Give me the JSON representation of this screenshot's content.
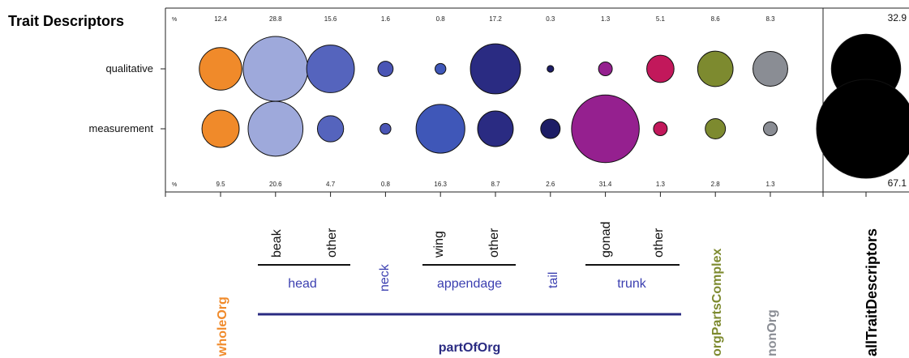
{
  "chart_data": {
    "type": "bubble",
    "title": "Trait Descriptors",
    "rows": [
      "qualitative",
      "measurement"
    ],
    "percent_marker": "%",
    "columns": [
      {
        "key": "wholeOrg",
        "color": "#f08a2a",
        "qualitative": 12.4,
        "measurement": 9.5
      },
      {
        "key": "head-beak",
        "color": "#9ea9db",
        "qualitative": 28.8,
        "measurement": 20.6
      },
      {
        "key": "head-other",
        "color": "#5564bd",
        "qualitative": 15.6,
        "measurement": 4.7
      },
      {
        "key": "neck",
        "color": "#4a55b5",
        "qualitative": 1.6,
        "measurement": 0.8
      },
      {
        "key": "appendage-wing",
        "color": "#3f57b8",
        "qualitative": 0.8,
        "measurement": 16.3
      },
      {
        "key": "appendage-other",
        "color": "#2a2b82",
        "qualitative": 17.2,
        "measurement": 8.7
      },
      {
        "key": "tail",
        "color": "#1d1d66",
        "qualitative": 0.3,
        "measurement": 2.6
      },
      {
        "key": "trunk-gonad",
        "color": "#95208f",
        "qualitative": 1.3,
        "measurement": 31.4
      },
      {
        "key": "trunk-other",
        "color": "#c2185b",
        "qualitative": 5.1,
        "measurement": 1.3
      },
      {
        "key": "orgPartsComplex",
        "color": "#7d8a2f",
        "qualitative": 8.6,
        "measurement": 2.8
      },
      {
        "key": "nonOrg",
        "color": "#8a8d94",
        "qualitative": 8.3,
        "measurement": 1.3
      }
    ],
    "qualitative_labels": [
      "12.4",
      "28.8",
      "15.6",
      "1.6",
      "0.8",
      "17.2",
      "0.3",
      "1.3",
      "5.1",
      "8.6",
      "8.3"
    ],
    "measurement_labels": [
      "9.5",
      "20.6",
      "4.7",
      "0.8",
      "16.3",
      "8.7",
      "2.6",
      "31.4",
      "1.3",
      "2.8",
      "1.3"
    ],
    "total": {
      "label": "allTraitDescriptors",
      "qualitative": 32.9,
      "measurement": 67.1,
      "qualitative_text": "32.9",
      "measurement_text": "67.1",
      "color": "#000000"
    },
    "sub_labels": {
      "beak": "beak",
      "head_other": "other",
      "wing": "wing",
      "appendage_other": "other",
      "gonad": "gonad",
      "trunk_other": "other"
    },
    "group_labels": {
      "head": "head",
      "neck": "neck",
      "appendage": "appendage",
      "tail": "tail",
      "trunk": "trunk",
      "partOfOrg": "partOfOrg"
    },
    "category_labels": {
      "wholeOrg": "wholeOrg",
      "orgPartsComplex": "orgPartsComplex",
      "nonOrg": "nonOrg"
    },
    "label_colors": {
      "wholeOrg": "#f08a2a",
      "partOfOrg": "#2a2b82",
      "groups": "#3b3fb0",
      "orgPartsComplex": "#7d8a2f",
      "nonOrg": "#8a8d94",
      "total": "#000000"
    }
  }
}
